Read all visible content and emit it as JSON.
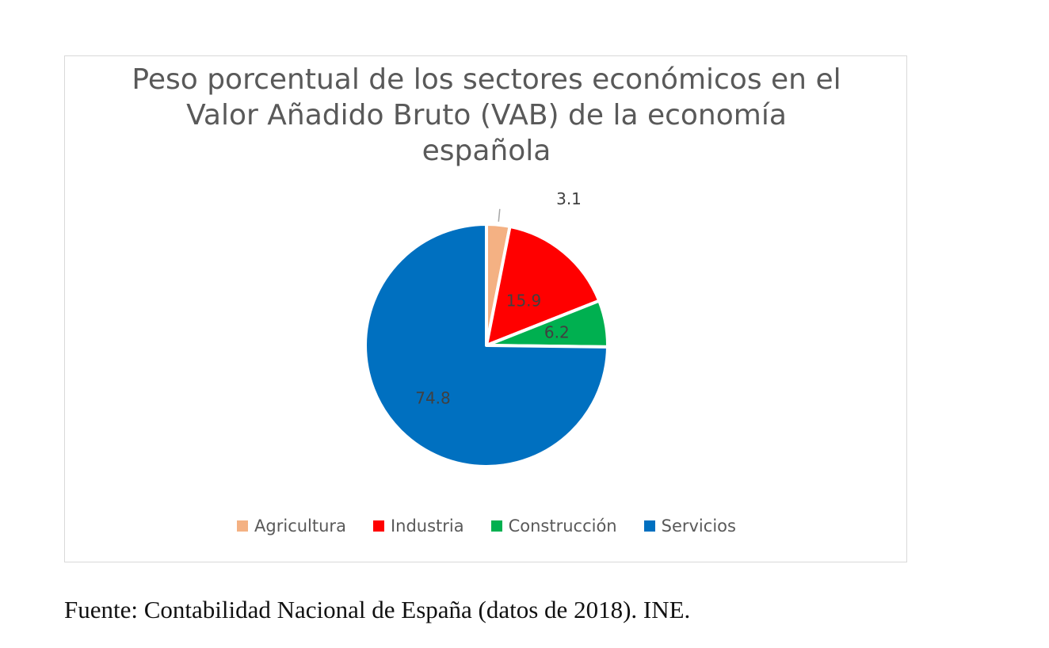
{
  "chart_data": {
    "type": "pie",
    "title": "Peso porcentual de los sectores económicos en el\nValor Añadido Bruto (VAB) de la economía\nespañola",
    "categories": [
      "Agricultura",
      "Industria",
      "Construcción",
      "Servicios"
    ],
    "values": [
      3.1,
      15.9,
      6.2,
      74.8
    ],
    "value_labels": [
      "3.1",
      "15.9",
      "6.2",
      "74.8"
    ],
    "colors": [
      "#F4B183",
      "#FF0000",
      "#00B050",
      "#0070C0"
    ],
    "legend_position": "bottom",
    "start_angle": "top-clockwise"
  },
  "source": "Fuente: Contabilidad Nacional de España (datos de 2018). INE."
}
